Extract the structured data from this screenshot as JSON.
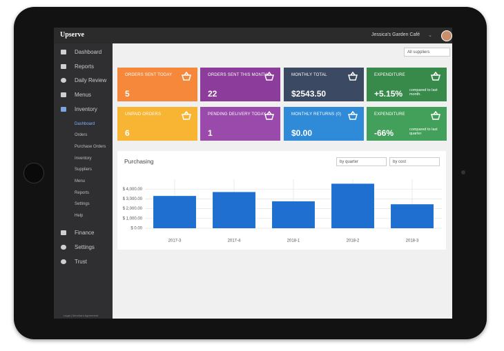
{
  "header": {
    "brand": "Upserve",
    "user": "Jessica's Garden Café"
  },
  "sidebar": {
    "items": [
      "Dashboard",
      "Reports",
      "Daily Review",
      "Menus",
      "Inventory"
    ],
    "subitems": [
      "Dashboard",
      "Orders",
      "Purchase Orders",
      "Inventory",
      "Suppliers",
      "Menu",
      "Reports",
      "Settings",
      "Help"
    ],
    "bottom": [
      "Finance",
      "Settings",
      "Trust"
    ],
    "footer": "Legal | Merchant Agreement"
  },
  "filter": "All suppliers",
  "cards": [
    {
      "label": "ORDERS SENT TODAY",
      "value": "5",
      "color": "#f5883b"
    },
    {
      "label": "ORDERS SENT THIS MONTH",
      "value": "22",
      "color": "#8c3d9c"
    },
    {
      "label": "MONTHLY TOTAL",
      "value": "$2543.50",
      "color": "#3c4962"
    },
    {
      "label": "EXPENDITURE",
      "value": "+5.15%",
      "note": "compared to last month.",
      "color": "#388a4b"
    },
    {
      "label": "UNPAID ORDERS",
      "value": "6",
      "color": "#f8b534"
    },
    {
      "label": "PENDING DELIVERY TODAY",
      "value": "1",
      "color": "#9a4aaa"
    },
    {
      "label": "MONTHLY RETURNS (0)",
      "value": "$0.00",
      "color": "#2f8bd7"
    },
    {
      "label": "EXPENDITURE",
      "value": "-66%",
      "note": "compared to last quarter",
      "color": "#43a05a"
    }
  ],
  "controls": [
    "by quarter",
    "by cost"
  ],
  "chart_data": {
    "type": "bar",
    "title": "Purchasing",
    "categories": [
      "2017-3",
      "2017-4",
      "2018-1",
      "2018-2",
      "2018-3"
    ],
    "values": [
      3300,
      3700,
      2750,
      4550,
      2450
    ],
    "color": "#1f6fd0",
    "ylim": [
      0,
      5000
    ],
    "yticks": [
      {
        "value": 0,
        "label": "$ 0.00"
      },
      {
        "value": 1000,
        "label": "$ 1,000.00"
      },
      {
        "value": 2000,
        "label": "$ 2,000.00"
      },
      {
        "value": 3000,
        "label": "$ 3,000.00"
      },
      {
        "value": 4000,
        "label": "$ 4,000.00"
      }
    ],
    "grid": true
  }
}
